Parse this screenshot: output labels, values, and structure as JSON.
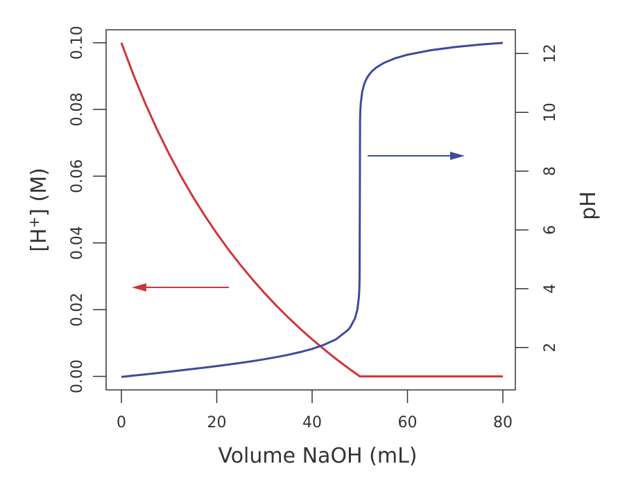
{
  "chart_data": {
    "type": "line",
    "xlabel": "Volume NaOH (mL)",
    "ylabel_left": "[H⁺] (M)",
    "ylabel_right": "pH",
    "xlim": [
      0,
      80
    ],
    "ylim_left": [
      0,
      0.1
    ],
    "ylim_right": [
      1,
      12.4
    ],
    "x_ticks": [
      "0",
      "20",
      "40",
      "60",
      "80"
    ],
    "y_left_ticks": [
      "0.00",
      "0.02",
      "0.04",
      "0.06",
      "0.08",
      "0.10"
    ],
    "y_right_ticks": [
      "2",
      "4",
      "6",
      "8",
      "10",
      "12"
    ],
    "grid": false,
    "series": [
      {
        "axis": "left",
        "color": "#d0343a",
        "x": [
          0,
          2.5,
          5,
          7.5,
          10,
          12.5,
          15,
          17.5,
          20,
          22.5,
          25,
          27.5,
          30,
          32.5,
          35,
          37.5,
          40,
          42.5,
          45,
          47.5,
          50,
          80
        ],
        "y": [
          0.1,
          0.09048,
          0.08182,
          0.07391,
          0.06667,
          0.06,
          0.05385,
          0.04815,
          0.04286,
          0.03793,
          0.03333,
          0.02903,
          0.025,
          0.02121,
          0.01765,
          0.01429,
          0.01111,
          0.00811,
          0.00526,
          0.00256,
          0,
          0
        ]
      },
      {
        "axis": "right",
        "color": "#3f4a9c",
        "x": [
          0,
          2.5,
          5,
          7.5,
          10,
          12.5,
          15,
          17.5,
          20,
          22.5,
          25,
          27.5,
          30,
          32.5,
          35,
          37.5,
          40,
          42.5,
          45,
          47.5,
          48,
          49,
          49.5,
          49.8,
          49.9,
          49.95,
          50,
          50.05,
          50.1,
          50.2,
          50.5,
          51,
          51.5,
          52,
          52.5,
          53.5,
          55,
          57.5,
          60,
          65,
          70,
          75,
          80
        ],
        "y": [
          1.0,
          1.043,
          1.087,
          1.131,
          1.176,
          1.222,
          1.269,
          1.317,
          1.368,
          1.421,
          1.477,
          1.537,
          1.602,
          1.673,
          1.753,
          1.845,
          1.954,
          2.091,
          2.279,
          2.592,
          2.69,
          2.996,
          3.299,
          3.7,
          4.0,
          4.3,
          7.0,
          9.7,
          10.0,
          10.3,
          10.7,
          11.0,
          11.17,
          11.29,
          11.387,
          11.53,
          11.678,
          11.844,
          11.959,
          12.115,
          12.222,
          12.301,
          12.363
        ]
      }
    ],
    "annotations": [
      {
        "type": "arrow",
        "direction": "left",
        "color": "#d0343a",
        "meaning": "left axis"
      },
      {
        "type": "arrow",
        "direction": "right",
        "color": "#3f4a9c",
        "meaning": "right axis"
      }
    ]
  }
}
